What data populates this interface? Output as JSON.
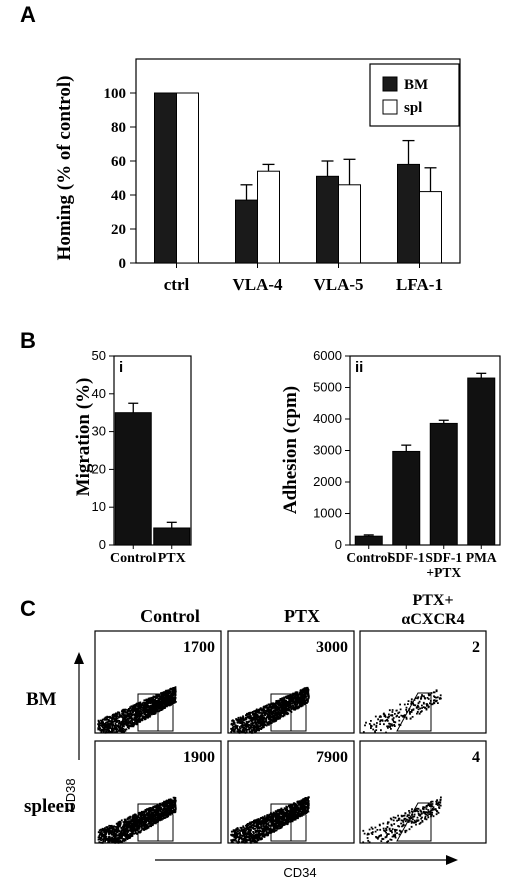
{
  "panels": {
    "a": "A",
    "b": "B",
    "c": "C"
  },
  "chart_data": [
    {
      "type": "bar",
      "panel": "A",
      "ylabel": "Homing (% of control)",
      "categories": [
        "ctrl",
        "VLA-4",
        "VLA-5",
        "LFA-1"
      ],
      "yticks": [
        "0",
        "20",
        "40",
        "60",
        "80",
        "100"
      ],
      "ylim": [
        0,
        120
      ],
      "legend_position": "top-right",
      "series": [
        {
          "name": "BM",
          "values": [
            100,
            37,
            51,
            58
          ],
          "errors": [
            0,
            9,
            9,
            14
          ],
          "fill": "#1a1a1a"
        },
        {
          "name": "spl",
          "values": [
            100,
            54,
            46,
            42
          ],
          "errors": [
            0,
            4,
            15,
            14
          ],
          "fill": "#ffffff"
        }
      ]
    },
    {
      "type": "bar",
      "panel": "B i",
      "tag": "i",
      "ylabel": "Migration (%)",
      "categories": [
        "Control",
        "PTX"
      ],
      "yticks": [
        "0",
        "10",
        "20",
        "30",
        "40",
        "50"
      ],
      "ylim": [
        0,
        50
      ],
      "values": [
        35,
        4.5
      ],
      "errors": [
        2.5,
        1.5
      ]
    },
    {
      "type": "bar",
      "panel": "B ii",
      "tag": "ii",
      "ylabel": "Adhesion (cpm)",
      "categories": [
        "Control",
        "SDF-1",
        "SDF-1 +PTX",
        "PMA"
      ],
      "category_lines": [
        [
          "Control"
        ],
        [
          "SDF-1"
        ],
        [
          "SDF-1",
          "+PTX"
        ],
        [
          "PMA"
        ]
      ],
      "yticks": [
        "0",
        "1000",
        "2000",
        "3000",
        "4000",
        "5000",
        "6000"
      ],
      "ylim": [
        0,
        6000
      ],
      "values": [
        280,
        2970,
        3860,
        5300
      ],
      "errors": [
        40,
        200,
        100,
        150
      ]
    }
  ],
  "flow": {
    "columns": [
      "Control",
      "PTX",
      "PTX+",
      "αCXCR4"
    ],
    "rows": [
      "BM",
      "spleen"
    ],
    "y_axis": "CD38",
    "x_axis": "CD34",
    "counts": {
      "bm": [
        "1700",
        "3000",
        "2"
      ],
      "spleen": [
        "1900",
        "7900",
        "4"
      ]
    }
  }
}
